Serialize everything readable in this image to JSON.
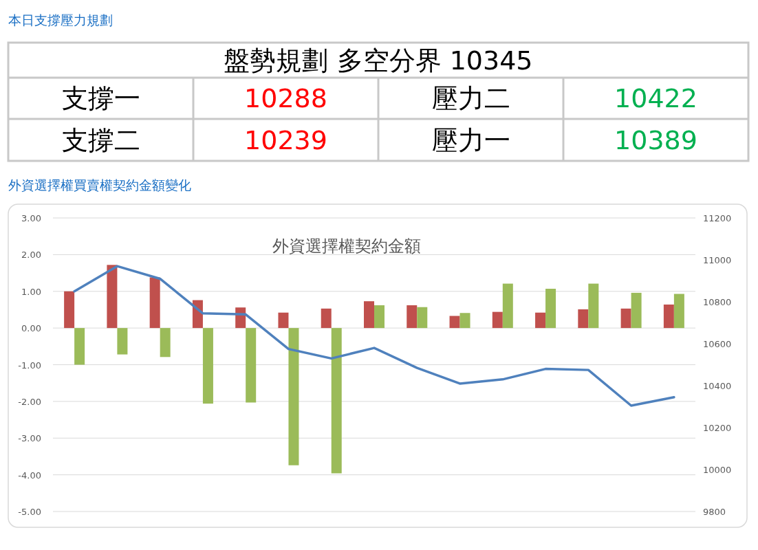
{
  "chart_data": [
    {
      "type": "other",
      "title": "本日支撐壓力規劃",
      "annotations": [
        "盤勢規劃 多空分界 10345",
        "支撐一",
        "10288",
        "壓力二",
        "10422",
        "支撐二",
        "10239",
        "壓力一",
        "10389"
      ],
      "colors": [
        "#000000",
        "#000000",
        "#ff0000",
        "#000000",
        "#00b050",
        "#000000",
        "#ff0000",
        "#000000",
        "#00b050"
      ]
    },
    {
      "type": "bar",
      "title": "外資選擇權買賣權契約金額變化",
      "subtitle": "外資選擇權契約金額",
      "categories": [
        null,
        null,
        null,
        null,
        null,
        null,
        null,
        null,
        null,
        null,
        null,
        null,
        null,
        null,
        null
      ],
      "series": [
        {
          "type": "bar",
          "color": "#c0504d",
          "values": [
            1.0,
            1.72,
            1.38,
            0.76,
            0.56,
            0.42,
            0.53,
            0.73,
            0.62,
            0.33,
            0.44,
            0.42,
            0.51,
            0.53,
            0.64
          ]
        },
        {
          "type": "bar",
          "color": "#9bbb59",
          "values": [
            -1.0,
            -0.72,
            -0.79,
            -2.06,
            -2.03,
            -3.74,
            -3.96,
            0.62,
            0.57,
            0.41,
            1.21,
            1.07,
            1.21,
            0.96,
            0.93
          ]
        },
        {
          "type": "line",
          "axis": "y2",
          "color": "#4f81bd",
          "values": [
            10850,
            10970,
            10910,
            10745,
            10740,
            10575,
            10530,
            10580,
            10485,
            10410,
            10430,
            10480,
            10475,
            10305,
            10345
          ]
        }
      ],
      "ylim": [
        -5,
        3
      ],
      "yticks": [
        {
          "value": 3,
          "label": "3.00"
        },
        {
          "value": 2,
          "label": "2.00"
        },
        {
          "value": 1,
          "label": "1.00"
        },
        {
          "value": 0,
          "label": "0.00"
        },
        {
          "value": -1,
          "label": "-1.00"
        },
        {
          "value": -2,
          "label": "-2.00"
        },
        {
          "value": -3,
          "label": "-3.00"
        },
        {
          "value": -4,
          "label": "-4.00"
        },
        {
          "value": -5,
          "label": "-5.00"
        }
      ],
      "y2lim": [
        9800,
        11200
      ],
      "y2ticks": [
        11200,
        11000,
        10800,
        10600,
        10400,
        10200,
        10000,
        9800
      ],
      "grid": "y"
    }
  ]
}
